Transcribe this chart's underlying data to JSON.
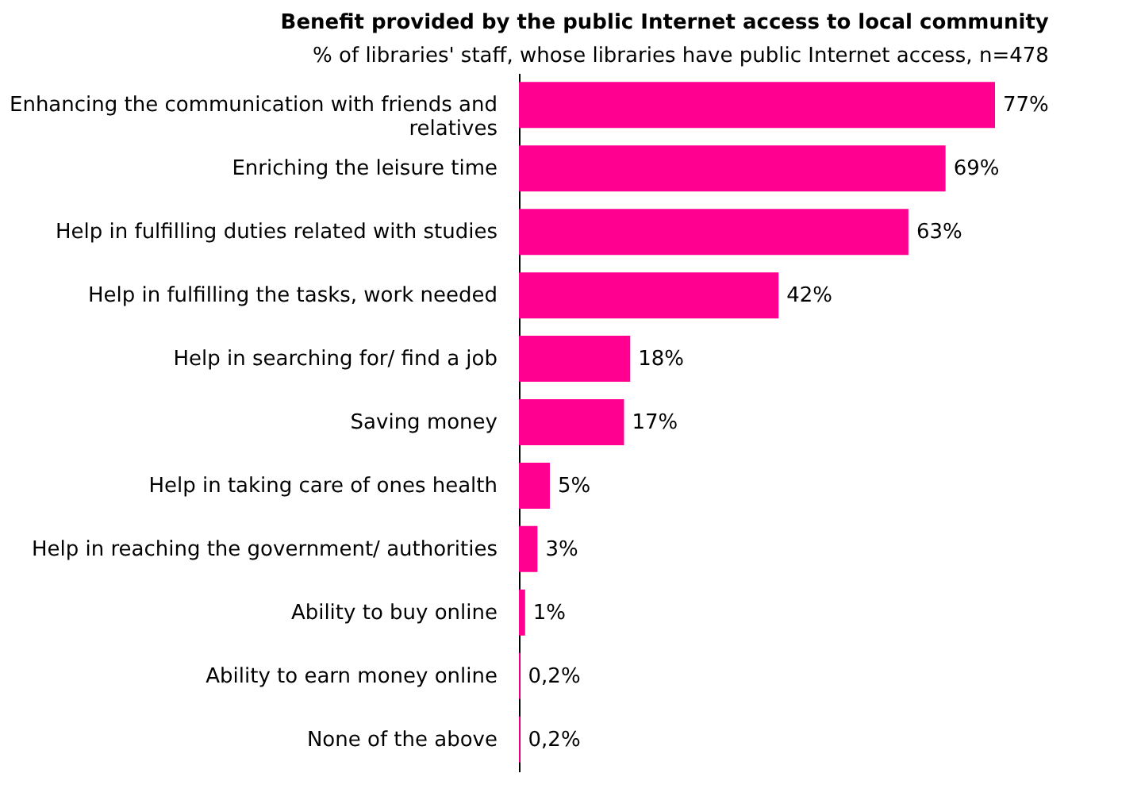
{
  "chart_data": {
    "type": "bar",
    "orientation": "horizontal",
    "title": "Benefit provided by the public Internet access to local community",
    "subtitle": "% of libraries' staff, whose libraries have public Internet access, n=478",
    "categories": [
      "Enhancing the communication with friends and relatives",
      "Enriching the leisure time",
      "Help in fulfilling duties related with studies",
      "Help in fulfilling the tasks, work needed",
      "Help in searching for/ find a job",
      "Saving money",
      "Help in taking care of ones health",
      "Help in reaching the government/ authorities",
      "Ability to buy online",
      "Ability to earn money online",
      "None of the above"
    ],
    "values": [
      77,
      69,
      63,
      42,
      18,
      17,
      5,
      3,
      1,
      0.2,
      0.2
    ],
    "value_labels": [
      "77%",
      "69%",
      "63%",
      "42%",
      "18%",
      "17%",
      "5%",
      "3%",
      "1%",
      "0,2%",
      "0,2%"
    ],
    "color": "#ff0090",
    "tick_labels": "y"
  }
}
